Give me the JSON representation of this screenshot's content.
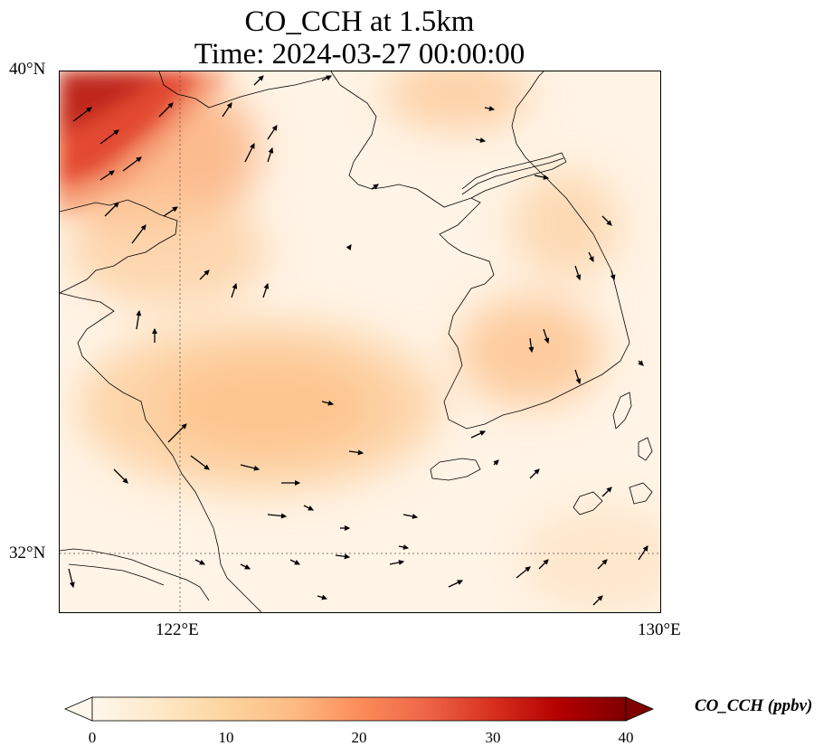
{
  "title_line1": "CO_CCH at 1.5km",
  "title_line2": "Time: 2024-03-27 00:00:00",
  "axes": {
    "lat_ticks": [
      "40°N",
      "32°N"
    ],
    "lon_ticks": [
      "122°E",
      "130°E"
    ]
  },
  "colorbar": {
    "label": "CO_CCH (ppbv)",
    "ticks": [
      "0",
      "10",
      "20",
      "30",
      "40"
    ],
    "min": 0,
    "max": 40,
    "colormap": "OrRd",
    "extend": "both"
  },
  "colors": {
    "low": "#fff7ec",
    "mid": "#fdbb84",
    "high": "#7f0000"
  }
}
